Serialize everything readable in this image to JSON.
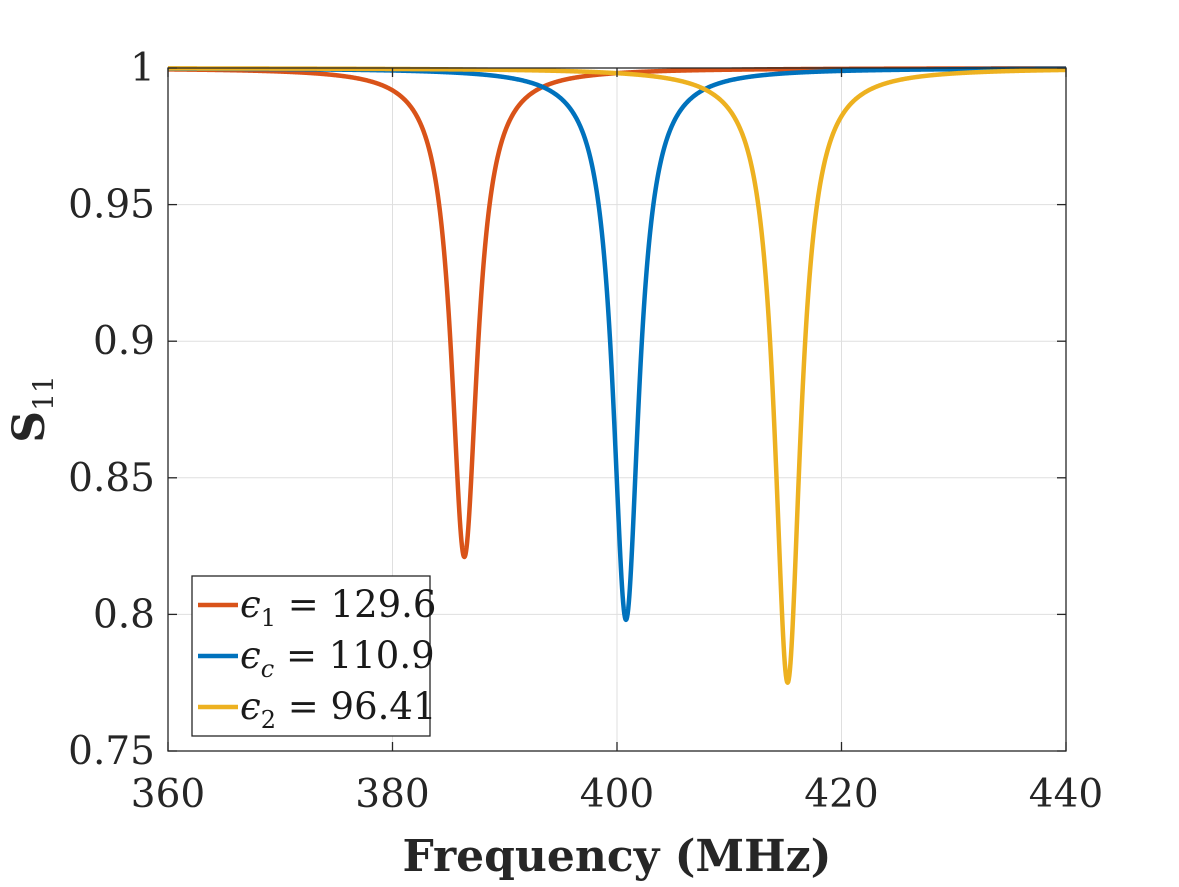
{
  "chart_data": {
    "type": "line",
    "xlabel": "Frequency (MHz)",
    "ylabel": "S",
    "ylabel_subscript": "11",
    "xlim": [
      360,
      440
    ],
    "ylim": [
      0.75,
      1.0
    ],
    "xticks": [
      360,
      380,
      400,
      420,
      440
    ],
    "xtick_labels": [
      "360",
      "380",
      "400",
      "420",
      "440"
    ],
    "yticks": [
      0.75,
      0.8,
      0.85,
      0.9,
      0.95,
      1.0
    ],
    "ytick_labels": [
      "0.75",
      "0.8",
      "0.85",
      "0.9",
      "0.95",
      "1"
    ],
    "grid": true,
    "legend_position": "bottom-left",
    "series": [
      {
        "name": "ϵ1 = 129.6",
        "label_symbol": "ϵ",
        "label_subscript": "1",
        "label_value": " = 129.6",
        "color": "#D95319",
        "resonance_mhz": 386.4,
        "min_value": 0.821,
        "halfwidth_mhz": 1.4
      },
      {
        "name": "ϵc = 110.9",
        "label_symbol": "ϵ",
        "label_subscript": "c",
        "label_value": " = 110.9",
        "color": "#0072BD",
        "resonance_mhz": 400.8,
        "min_value": 0.798,
        "halfwidth_mhz": 1.4
      },
      {
        "name": "ϵ2 = 96.41",
        "label_symbol": "ϵ",
        "label_subscript": "2",
        "label_value": " = 96.41",
        "color": "#EDB120",
        "resonance_mhz": 415.2,
        "min_value": 0.775,
        "halfwidth_mhz": 1.4
      }
    ]
  }
}
